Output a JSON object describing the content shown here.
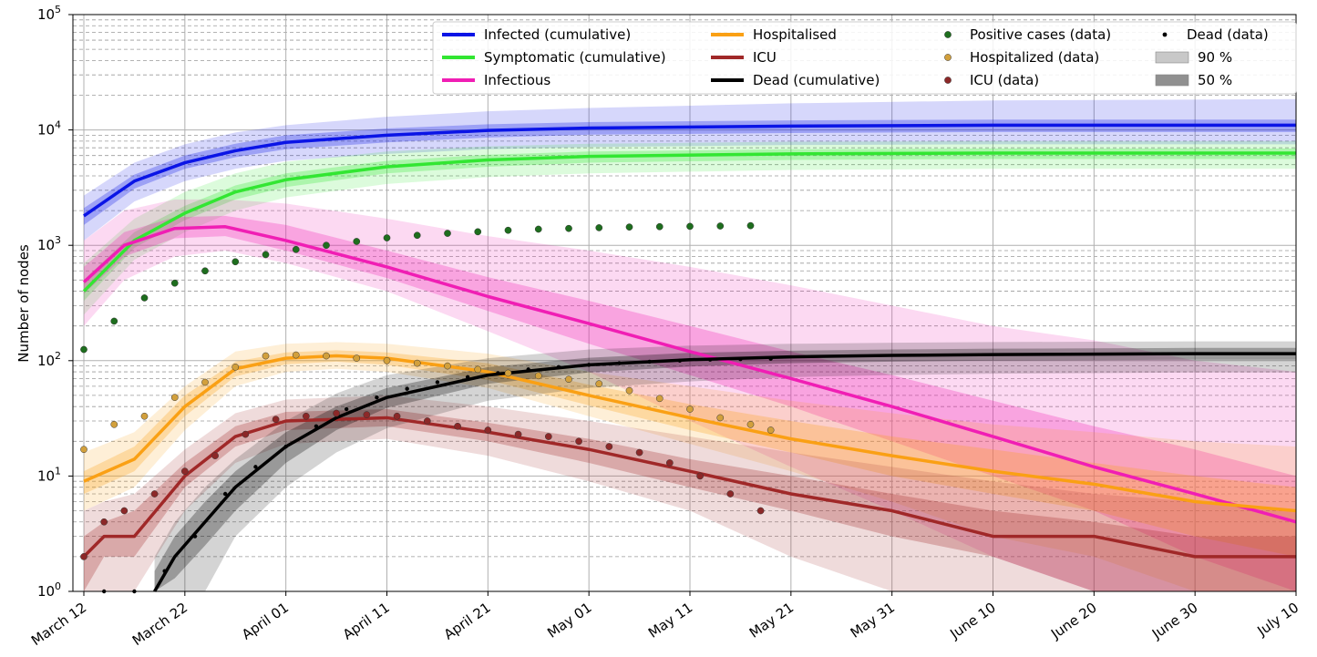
{
  "chart_data": {
    "type": "line",
    "title": "",
    "xlabel": "",
    "ylabel": "Number of nodes",
    "yscale": "log",
    "ylim": [
      1,
      100000
    ],
    "xlim": [
      "2020-03-12",
      "2020-07-10"
    ],
    "grid": true,
    "legend_position": "top-right",
    "x_tick_labels": [
      "March 12",
      "March 22",
      "April 01",
      "April 11",
      "April 21",
      "May 01",
      "May 11",
      "May 21",
      "May 31",
      "June 10",
      "June 20",
      "June 30",
      "July 10"
    ],
    "y_tick_labels": [
      {
        "base": "10",
        "exp": "0"
      },
      {
        "base": "10",
        "exp": "1"
      },
      {
        "base": "10",
        "exp": "2"
      },
      {
        "base": "10",
        "exp": "3"
      },
      {
        "base": "10",
        "exp": "4"
      },
      {
        "base": "10",
        "exp": "5"
      }
    ],
    "series": [
      {
        "name": "Infected (cumulative)",
        "kind": "line",
        "color": "#0a14e6",
        "x": [
          "2020-03-12",
          "2020-03-17",
          "2020-03-22",
          "2020-03-27",
          "2020-04-01",
          "2020-04-11",
          "2020-04-21",
          "2020-05-01",
          "2020-05-21",
          "2020-06-10",
          "2020-07-10"
        ],
        "y": [
          1800,
          3600,
          5200,
          6600,
          7800,
          9000,
          9900,
          10400,
          10800,
          11000,
          11000
        ],
        "band90": [
          [
            1100,
            2700
          ],
          [
            2400,
            5200
          ],
          [
            3600,
            7500
          ],
          [
            4600,
            9500
          ],
          [
            5400,
            11000
          ],
          [
            6200,
            13000
          ],
          [
            6800,
            14500
          ],
          [
            7100,
            15500
          ],
          [
            7400,
            17000
          ],
          [
            7500,
            18000
          ],
          [
            7500,
            18500
          ]
        ],
        "band50": [
          [
            1500,
            2100
          ],
          [
            3100,
            4100
          ],
          [
            4600,
            6000
          ],
          [
            5800,
            7600
          ],
          [
            6800,
            9000
          ],
          [
            7800,
            10300
          ],
          [
            8600,
            11200
          ],
          [
            9100,
            11700
          ],
          [
            9400,
            12100
          ],
          [
            9600,
            12300
          ],
          [
            9600,
            12300
          ]
        ]
      },
      {
        "name": "Symptomatic (cumulative)",
        "kind": "line",
        "color": "#32e632",
        "x": [
          "2020-03-12",
          "2020-03-17",
          "2020-03-22",
          "2020-03-27",
          "2020-04-01",
          "2020-04-11",
          "2020-04-21",
          "2020-05-01",
          "2020-05-21",
          "2020-06-10",
          "2020-07-10"
        ],
        "y": [
          400,
          1100,
          1900,
          2900,
          3700,
          4800,
          5500,
          5900,
          6200,
          6300,
          6300
        ],
        "band90": [
          [
            250,
            700
          ],
          [
            750,
            1700
          ],
          [
            1300,
            2900
          ],
          [
            2000,
            4200
          ],
          [
            2600,
            5300
          ],
          [
            3400,
            6500
          ],
          [
            3900,
            7200
          ],
          [
            4200,
            7600
          ],
          [
            4500,
            7900
          ],
          [
            4600,
            8000
          ],
          [
            4600,
            8000
          ]
        ],
        "band50": [
          [
            330,
            500
          ],
          [
            950,
            1300
          ],
          [
            1650,
            2200
          ],
          [
            2500,
            3300
          ],
          [
            3200,
            4200
          ],
          [
            4200,
            5400
          ],
          [
            4800,
            6100
          ],
          [
            5200,
            6500
          ],
          [
            5500,
            6800
          ],
          [
            5600,
            6900
          ],
          [
            5600,
            6900
          ]
        ]
      },
      {
        "name": "Infectious",
        "kind": "line",
        "color": "#f01eb4",
        "x": [
          "2020-03-12",
          "2020-03-16",
          "2020-03-21",
          "2020-03-26",
          "2020-04-01",
          "2020-04-11",
          "2020-04-21",
          "2020-05-01",
          "2020-05-11",
          "2020-05-21",
          "2020-05-31",
          "2020-06-10",
          "2020-06-20",
          "2020-06-30",
          "2020-07-10"
        ],
        "y": [
          480,
          1000,
          1400,
          1450,
          1100,
          650,
          360,
          210,
          120,
          70,
          40,
          22,
          12,
          7,
          4
        ],
        "band90": [
          [
            200,
            1100
          ],
          [
            500,
            2000
          ],
          [
            800,
            2500
          ],
          [
            900,
            2500
          ],
          [
            700,
            2300
          ],
          [
            400,
            1700
          ],
          [
            180,
            1200
          ],
          [
            80,
            900
          ],
          [
            30,
            650
          ],
          [
            12,
            450
          ],
          [
            5,
            300
          ],
          [
            2,
            200
          ],
          [
            1,
            150
          ],
          [
            1,
            100
          ],
          [
            1,
            80
          ]
        ],
        "band50": [
          [
            380,
            650
          ],
          [
            800,
            1300
          ],
          [
            1150,
            1750
          ],
          [
            1200,
            1800
          ],
          [
            900,
            1500
          ],
          [
            520,
            900
          ],
          [
            270,
            530
          ],
          [
            140,
            330
          ],
          [
            75,
            200
          ],
          [
            40,
            120
          ],
          [
            20,
            75
          ],
          [
            10,
            45
          ],
          [
            5,
            27
          ],
          [
            2,
            17
          ],
          [
            1,
            10
          ]
        ]
      },
      {
        "name": "Hospitalised",
        "kind": "line",
        "color": "#faa014",
        "x": [
          "2020-03-12",
          "2020-03-17",
          "2020-03-22",
          "2020-03-27",
          "2020-04-01",
          "2020-04-06",
          "2020-04-11",
          "2020-04-21",
          "2020-05-01",
          "2020-05-11",
          "2020-05-21",
          "2020-05-31",
          "2020-06-10",
          "2020-06-20",
          "2020-06-30",
          "2020-07-10"
        ],
        "y": [
          9,
          14,
          40,
          85,
          105,
          110,
          105,
          80,
          50,
          32,
          21,
          15,
          11,
          8.5,
          6,
          5
        ],
        "band90": [
          [
            5,
            16
          ],
          [
            8,
            24
          ],
          [
            25,
            60
          ],
          [
            60,
            120
          ],
          [
            80,
            140
          ],
          [
            85,
            145
          ],
          [
            80,
            140
          ],
          [
            58,
            115
          ],
          [
            33,
            80
          ],
          [
            19,
            60
          ],
          [
            11,
            45
          ],
          [
            6,
            35
          ],
          [
            3,
            28
          ],
          [
            2,
            24
          ],
          [
            1,
            20
          ],
          [
            1,
            18
          ]
        ],
        "band50": [
          [
            7,
            11
          ],
          [
            11,
            18
          ],
          [
            33,
            50
          ],
          [
            73,
            98
          ],
          [
            93,
            118
          ],
          [
            98,
            123
          ],
          [
            92,
            118
          ],
          [
            68,
            95
          ],
          [
            41,
            62
          ],
          [
            25,
            42
          ],
          [
            16,
            30
          ],
          [
            10,
            22
          ],
          [
            7,
            17
          ],
          [
            5,
            13
          ],
          [
            3,
            10
          ],
          [
            2,
            8
          ]
        ]
      },
      {
        "name": "ICU",
        "kind": "line",
        "color": "#a02828",
        "x": [
          "2020-03-12",
          "2020-03-14",
          "2020-03-17",
          "2020-03-22",
          "2020-03-27",
          "2020-04-01",
          "2020-04-11",
          "2020-04-21",
          "2020-05-01",
          "2020-05-11",
          "2020-05-21",
          "2020-05-31",
          "2020-06-10",
          "2020-06-20",
          "2020-06-30",
          "2020-07-10"
        ],
        "y": [
          2,
          3,
          3,
          10,
          22,
          30,
          32,
          24,
          17,
          11,
          7,
          5,
          3,
          3,
          2,
          2
        ],
        "band90": [
          [
            1,
            5
          ],
          [
            1,
            6
          ],
          [
            1,
            7
          ],
          [
            5,
            17
          ],
          [
            13,
            35
          ],
          [
            19,
            46
          ],
          [
            21,
            50
          ],
          [
            15,
            40
          ],
          [
            9,
            30
          ],
          [
            5,
            22
          ],
          [
            2,
            16
          ],
          [
            1,
            12
          ],
          [
            1,
            9
          ],
          [
            1,
            7
          ],
          [
            1,
            6
          ],
          [
            1,
            5
          ]
        ],
        "band50": [
          [
            1,
            3
          ],
          [
            2,
            4
          ],
          [
            2,
            5
          ],
          [
            8,
            13
          ],
          [
            18,
            27
          ],
          [
            25,
            36
          ],
          [
            27,
            38
          ],
          [
            20,
            29
          ],
          [
            13,
            21
          ],
          [
            8,
            14
          ],
          [
            5,
            10
          ],
          [
            3,
            7
          ],
          [
            2,
            5
          ],
          [
            1,
            4
          ],
          [
            1,
            3
          ],
          [
            1,
            3
          ]
        ]
      },
      {
        "name": "Dead (cumulative)",
        "kind": "line",
        "color": "#000000",
        "x": [
          "2020-03-19",
          "2020-03-21",
          "2020-03-24",
          "2020-03-27",
          "2020-04-01",
          "2020-04-06",
          "2020-04-11",
          "2020-04-21",
          "2020-05-01",
          "2020-05-11",
          "2020-05-21",
          "2020-05-31",
          "2020-06-10",
          "2020-06-20",
          "2020-06-30",
          "2020-07-10"
        ],
        "y": [
          1,
          2,
          4,
          8,
          18,
          32,
          48,
          75,
          92,
          102,
          108,
          111,
          113,
          114,
          115,
          115
        ],
        "band90": [
          [
            1,
            2
          ],
          [
            1,
            4
          ],
          [
            1,
            8
          ],
          [
            3,
            14
          ],
          [
            8,
            30
          ],
          [
            16,
            52
          ],
          [
            26,
            75
          ],
          [
            45,
            105
          ],
          [
            58,
            125
          ],
          [
            66,
            135
          ],
          [
            72,
            140
          ],
          [
            75,
            143
          ],
          [
            77,
            145
          ],
          [
            78,
            146
          ],
          [
            79,
            147
          ],
          [
            79,
            147
          ]
        ],
        "band50": [
          [
            1,
            1.5
          ],
          [
            1.3,
            3
          ],
          [
            2.5,
            6
          ],
          [
            5,
            11
          ],
          [
            13,
            24
          ],
          [
            25,
            40
          ],
          [
            39,
            58
          ],
          [
            63,
            88
          ],
          [
            79,
            106
          ],
          [
            89,
            117
          ],
          [
            95,
            122
          ],
          [
            98,
            125
          ],
          [
            100,
            127
          ],
          [
            101,
            128
          ],
          [
            102,
            129
          ],
          [
            102,
            129
          ]
        ]
      },
      {
        "name": "Positive cases (data)",
        "kind": "points",
        "color": "#1e6e1e",
        "x": [
          "2020-03-12",
          "2020-03-15",
          "2020-03-18",
          "2020-03-21",
          "2020-03-24",
          "2020-03-27",
          "2020-03-30",
          "2020-04-02",
          "2020-04-05",
          "2020-04-08",
          "2020-04-11",
          "2020-04-14",
          "2020-04-17",
          "2020-04-20",
          "2020-04-23",
          "2020-04-26",
          "2020-04-29",
          "2020-05-02",
          "2020-05-05",
          "2020-05-08",
          "2020-05-11",
          "2020-05-14",
          "2020-05-17"
        ],
        "y": [
          125,
          220,
          350,
          470,
          600,
          720,
          830,
          920,
          1000,
          1080,
          1160,
          1220,
          1270,
          1310,
          1350,
          1380,
          1400,
          1420,
          1440,
          1450,
          1460,
          1470,
          1480
        ]
      },
      {
        "name": "Hospitalized (data)",
        "kind": "points",
        "color": "#d2a03c",
        "x": [
          "2020-03-12",
          "2020-03-15",
          "2020-03-18",
          "2020-03-21",
          "2020-03-24",
          "2020-03-27",
          "2020-03-30",
          "2020-04-02",
          "2020-04-05",
          "2020-04-08",
          "2020-04-11",
          "2020-04-14",
          "2020-04-17",
          "2020-04-20",
          "2020-04-23",
          "2020-04-26",
          "2020-04-29",
          "2020-05-02",
          "2020-05-05",
          "2020-05-08",
          "2020-05-11",
          "2020-05-14",
          "2020-05-17",
          "2020-05-19"
        ],
        "y": [
          17,
          28,
          33,
          48,
          65,
          88,
          110,
          112,
          110,
          105,
          100,
          95,
          90,
          84,
          78,
          74,
          69,
          63,
          55,
          47,
          38,
          32,
          28,
          25
        ]
      },
      {
        "name": "ICU (data)",
        "kind": "points",
        "color": "#8c2828",
        "x": [
          "2020-03-12",
          "2020-03-14",
          "2020-03-16",
          "2020-03-19",
          "2020-03-22",
          "2020-03-25",
          "2020-03-28",
          "2020-03-31",
          "2020-04-03",
          "2020-04-06",
          "2020-04-09",
          "2020-04-12",
          "2020-04-15",
          "2020-04-18",
          "2020-04-21",
          "2020-04-24",
          "2020-04-27",
          "2020-04-30",
          "2020-05-03",
          "2020-05-06",
          "2020-05-09",
          "2020-05-12",
          "2020-05-15",
          "2020-05-18"
        ],
        "y": [
          2,
          4,
          5,
          7,
          11,
          15,
          23,
          31,
          33,
          35,
          34,
          33,
          30,
          27,
          25,
          23,
          22,
          20,
          18,
          16,
          13,
          10,
          7,
          5
        ]
      },
      {
        "name": "Dead (data)",
        "kind": "points",
        "color": "#000000",
        "x": [
          "2020-03-14",
          "2020-03-17",
          "2020-03-20",
          "2020-03-23",
          "2020-03-26",
          "2020-03-29",
          "2020-04-01",
          "2020-04-04",
          "2020-04-07",
          "2020-04-10",
          "2020-04-13",
          "2020-04-16",
          "2020-04-19",
          "2020-04-22",
          "2020-04-25",
          "2020-04-28",
          "2020-05-01",
          "2020-05-04",
          "2020-05-07",
          "2020-05-10",
          "2020-05-13",
          "2020-05-16",
          "2020-05-19"
        ],
        "y": [
          1,
          1,
          1.5,
          3,
          7,
          12,
          18,
          27,
          38,
          48,
          57,
          65,
          72,
          78,
          84,
          88,
          92,
          95,
          98,
          100,
          102,
          103,
          104
        ]
      }
    ],
    "legend_bands": [
      {
        "label": "90 %",
        "color": "#c8c8c8"
      },
      {
        "label": "50 %",
        "color": "#909090"
      }
    ]
  }
}
